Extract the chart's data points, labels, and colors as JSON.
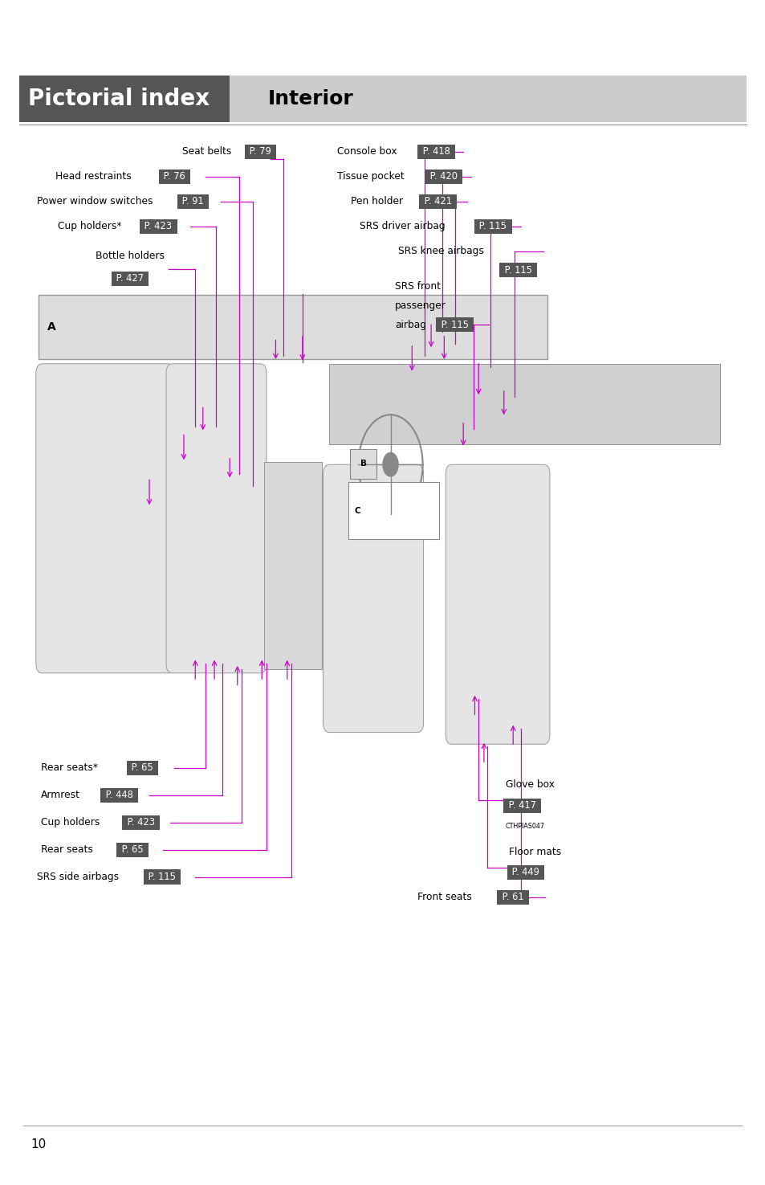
{
  "page_bg": "#ffffff",
  "header_left_bg": "#555555",
  "header_right_bg": "#cccccc",
  "header_left_text": "Pictorial index",
  "header_right_text": "Interior",
  "header_left_text_color": "#ffffff",
  "header_right_text_color": "#000000",
  "label_bg": "#555555",
  "label_text_color": "#ffffff",
  "arrow_color": "#cc00cc",
  "page_number": "10",
  "page_width": 9.54,
  "page_height": 14.75
}
